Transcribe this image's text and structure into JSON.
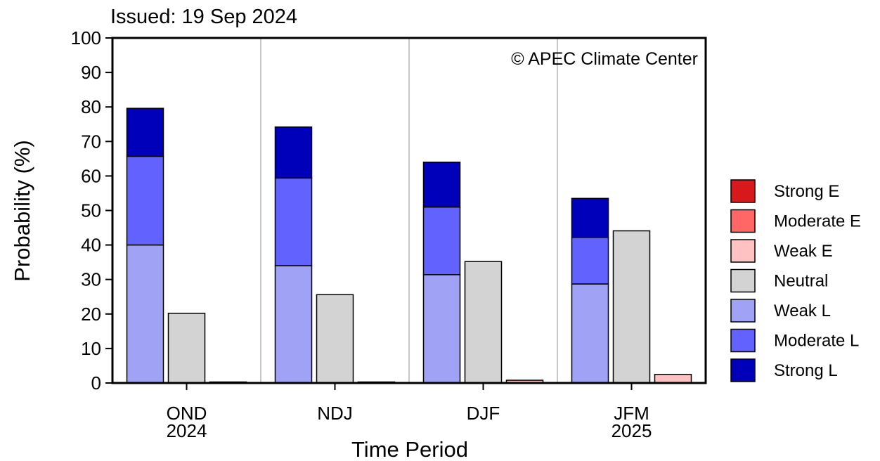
{
  "chart_data": {
    "type": "bar",
    "issued_label": "Issued: 19 Sep 2024",
    "credit": "© APEC Climate Center",
    "xlabel": "Time Period",
    "ylabel": "Probability (%)",
    "ylim": [
      0,
      100
    ],
    "yticks": [
      0,
      10,
      20,
      30,
      40,
      50,
      60,
      70,
      80,
      90,
      100
    ],
    "categories": [
      {
        "line1": "OND",
        "line2": "2024"
      },
      {
        "line1": "NDJ",
        "line2": ""
      },
      {
        "line1": "DJF",
        "line2": ""
      },
      {
        "line1": "JFM",
        "line2": "2025"
      }
    ],
    "groups": [
      {
        "la_nina": {
          "weak": 40.0,
          "moderate": 25.7,
          "strong": 13.9
        },
        "neutral": 20.2,
        "el_nino": {
          "weak": 0.3,
          "moderate": 0.0,
          "strong": 0.0
        }
      },
      {
        "la_nina": {
          "weak": 34.0,
          "moderate": 25.4,
          "strong": 14.8
        },
        "neutral": 25.6,
        "el_nino": {
          "weak": 0.3,
          "moderate": 0.0,
          "strong": 0.0
        }
      },
      {
        "la_nina": {
          "weak": 31.4,
          "moderate": 19.6,
          "strong": 13.0
        },
        "neutral": 35.2,
        "el_nino": {
          "weak": 0.8,
          "moderate": 0.0,
          "strong": 0.0
        }
      },
      {
        "la_nina": {
          "weak": 28.7,
          "moderate": 13.5,
          "strong": 11.3
        },
        "neutral": 44.1,
        "el_nino": {
          "weak": 2.5,
          "moderate": 0.0,
          "strong": 0.0
        }
      }
    ],
    "legend": [
      {
        "key": "strong_e",
        "label": "Strong E",
        "color": "#d7191c"
      },
      {
        "key": "moderate_e",
        "label": "Moderate E",
        "color": "#ff6666"
      },
      {
        "key": "weak_e",
        "label": "Weak E",
        "color": "#ffc2c2"
      },
      {
        "key": "neutral",
        "label": "Neutral",
        "color": "#d3d3d3"
      },
      {
        "key": "weak_l",
        "label": "Weak L",
        "color": "#a0a2f5"
      },
      {
        "key": "moderate_l",
        "label": "Moderate L",
        "color": "#6262ff"
      },
      {
        "key": "strong_l",
        "label": "Strong L",
        "color": "#0000bb"
      }
    ],
    "legend_position": "right",
    "grid": false
  }
}
